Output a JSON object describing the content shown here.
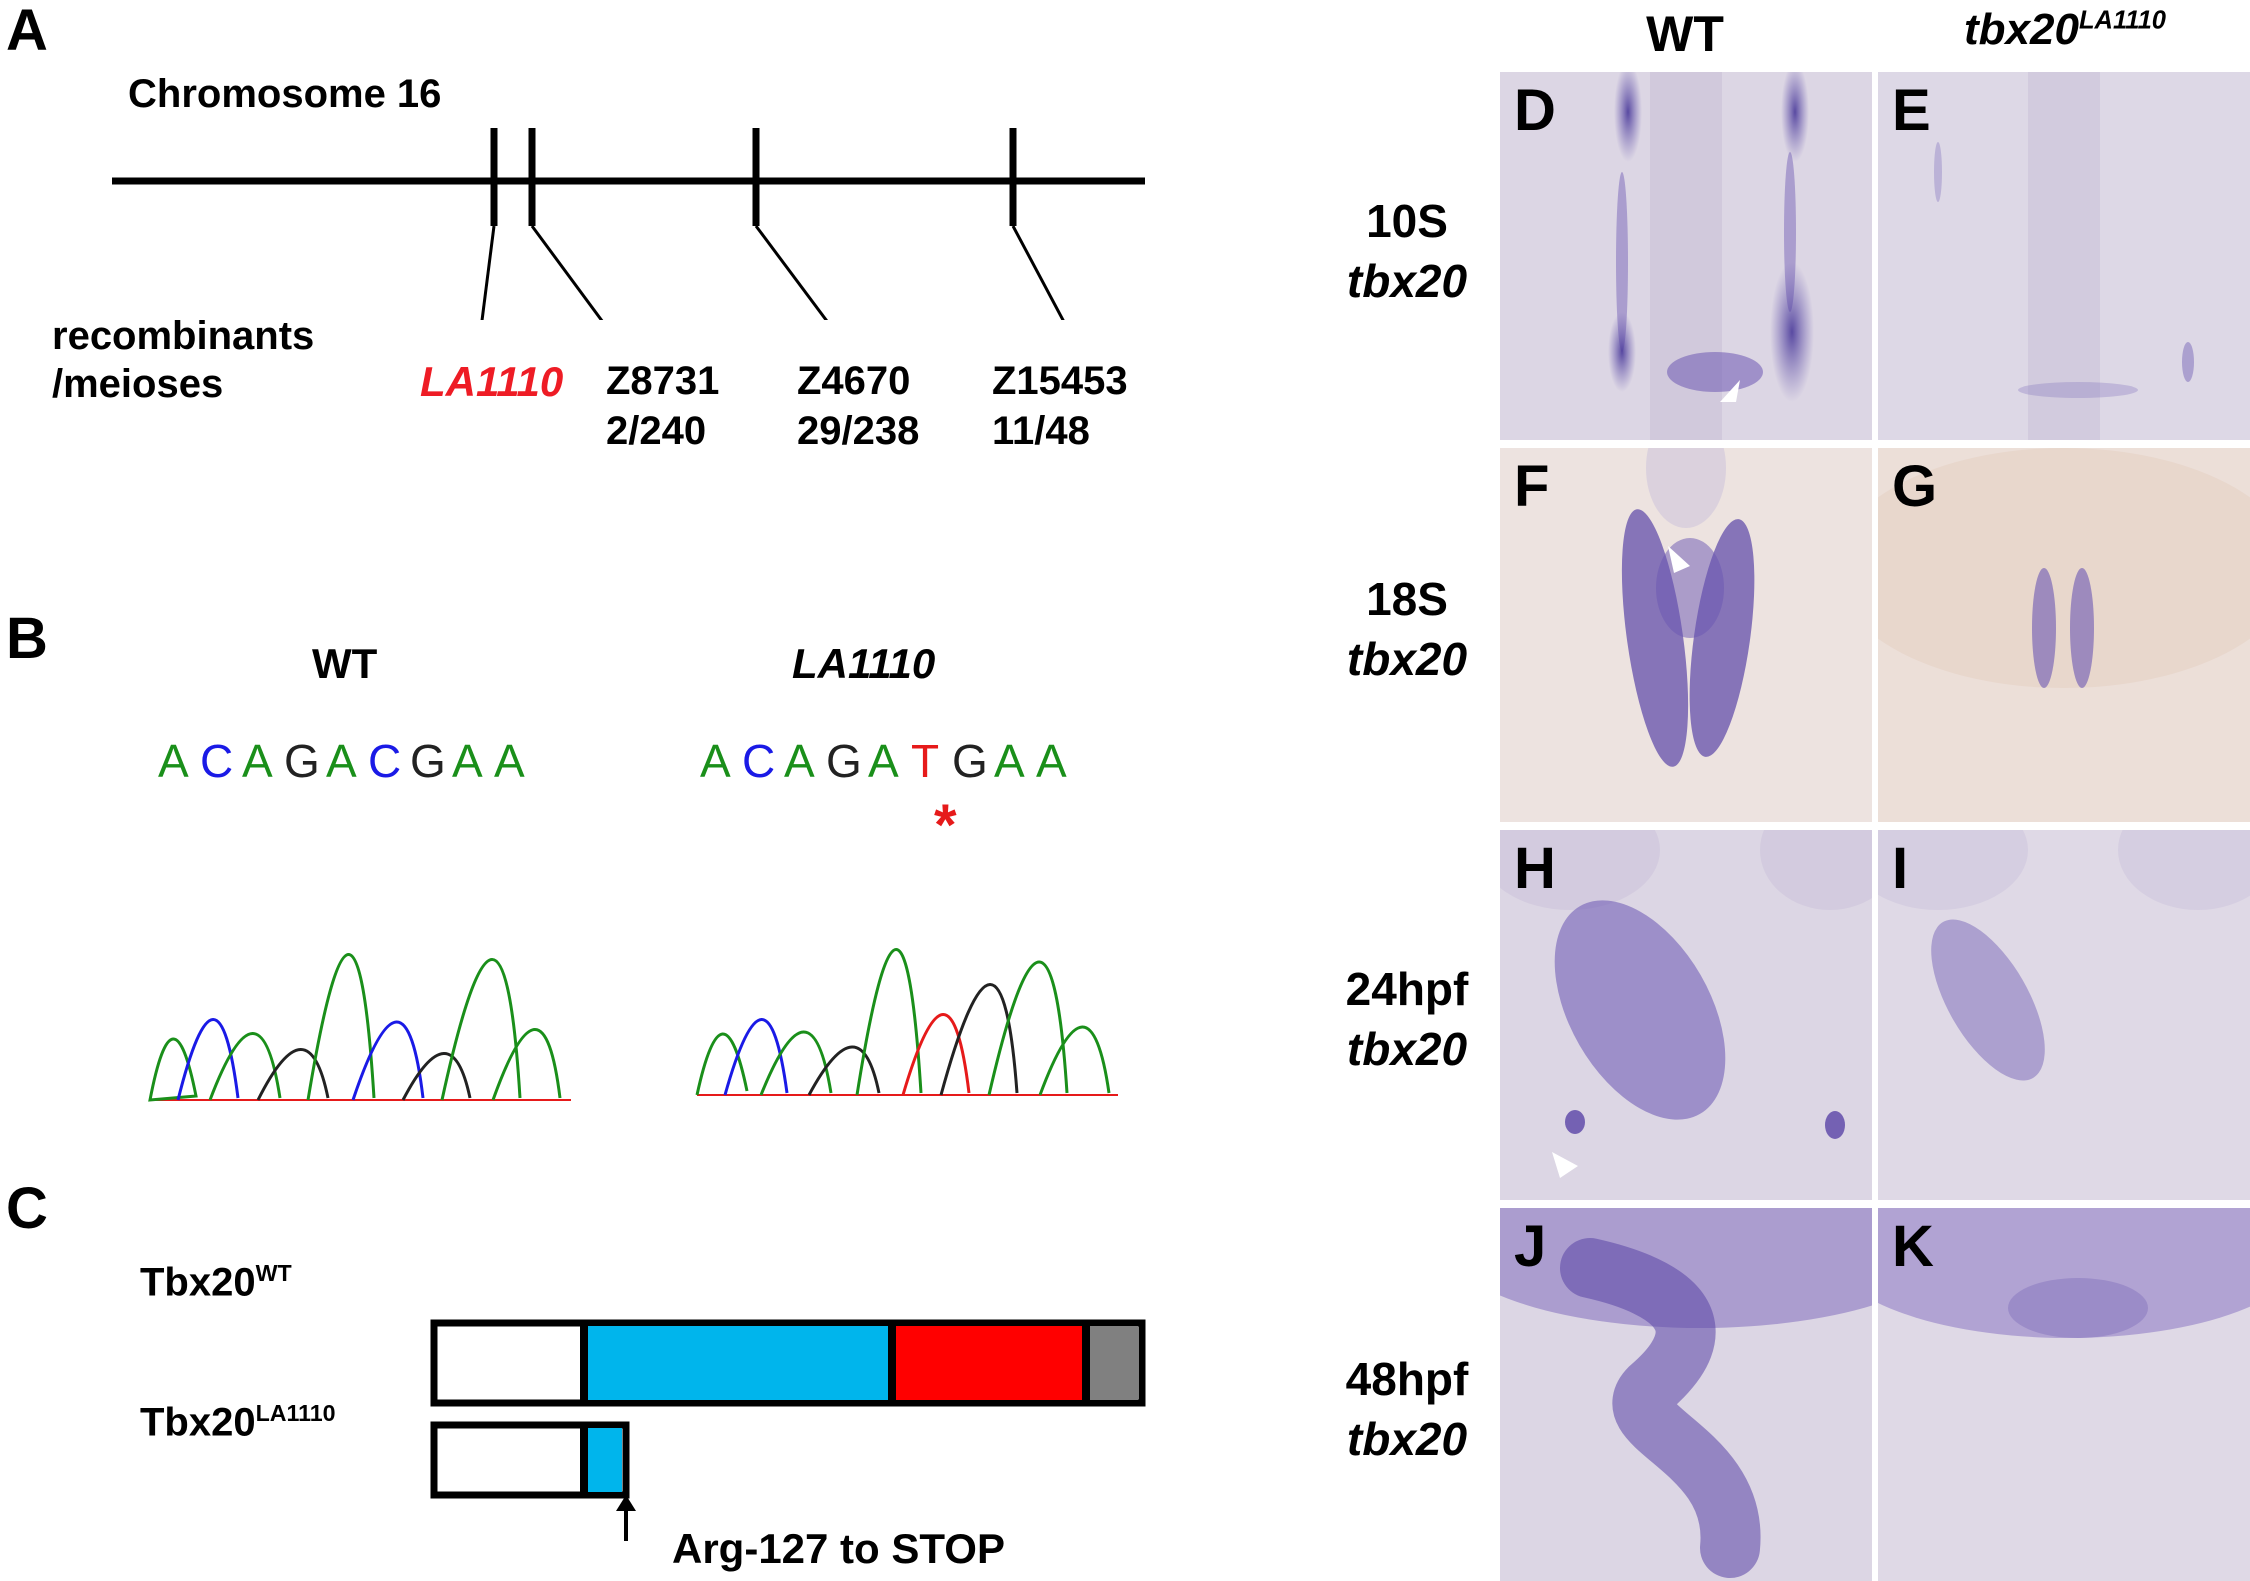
{
  "panel_a": {
    "letter": "A",
    "chromosome_label": "Chromosome 16",
    "row_label_line1": "recombinants",
    "row_label_line2": "/meioses",
    "mutant_label": "LA1110",
    "markers": [
      {
        "name": "Z8731",
        "ratio": "2/240"
      },
      {
        "name": "Z4670",
        "ratio": "29/238"
      },
      {
        "name": "Z15453",
        "ratio": "11/48"
      }
    ],
    "mutant_color": "#ee1c25"
  },
  "panel_b": {
    "letter": "B",
    "wt_title": "WT",
    "mut_title": "LA1110",
    "wt_sequence": [
      "A",
      "C",
      "A",
      "G",
      "A",
      "C",
      "G",
      "A",
      "A"
    ],
    "mut_sequence": [
      "A",
      "C",
      "A",
      "G",
      "A",
      "T",
      "G",
      "A",
      "A"
    ],
    "mutation_marker": "*",
    "base_colors": {
      "A": "#1a8f1a",
      "C": "#1a1ae6",
      "G": "#222222",
      "T": "#e61a1a"
    }
  },
  "panel_c": {
    "letter": "C",
    "wt_label": "Tbx20",
    "wt_sup": "WT",
    "mut_label": "Tbx20",
    "mut_sup": "LA1110",
    "arrow_label": "Arg-127 to STOP",
    "domain_colors": [
      "#ffffff",
      "#00b5ec",
      "#ff0000",
      "#808080"
    ]
  },
  "right": {
    "col_wt": "WT",
    "col_mut_base": "tbx20",
    "col_mut_sup": "LA1110",
    "rows": [
      {
        "stage": "10S",
        "gene": "tbx20",
        "left_letter": "D",
        "right_letter": "E"
      },
      {
        "stage": "18S",
        "gene": "tbx20",
        "left_letter": "F",
        "right_letter": "G"
      },
      {
        "stage": "24hpf",
        "gene": "tbx20",
        "left_letter": "H",
        "right_letter": "I"
      },
      {
        "stage": "48hpf",
        "gene": "tbx20",
        "left_letter": "J",
        "right_letter": "K"
      }
    ]
  }
}
